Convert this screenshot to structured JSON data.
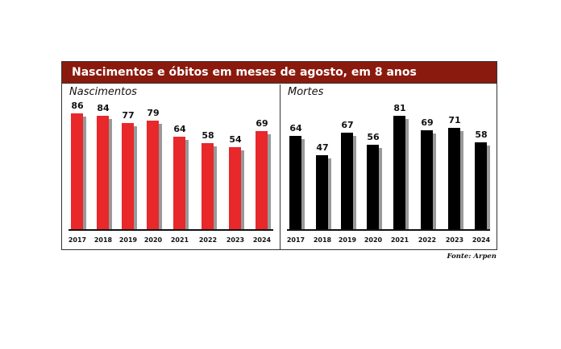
{
  "title": "Nascimentos e óbitos em meses de agosto, em 8 anos",
  "source": "Fonte: Arpen",
  "chart_data": [
    {
      "type": "bar",
      "title": "Nascimentos",
      "categories": [
        "2017",
        "2018",
        "2019",
        "2020",
        "2021",
        "2022",
        "2023",
        "2024"
      ],
      "values": [
        86,
        84,
        77,
        79,
        64,
        58,
        54,
        69
      ],
      "color": "#e8282a",
      "grid": false
    },
    {
      "type": "bar",
      "title": "Mortes",
      "categories": [
        "2017",
        "2018",
        "2019",
        "2020",
        "2021",
        "2022",
        "2023",
        "2024"
      ],
      "values": [
        64,
        47,
        67,
        56,
        81,
        69,
        71,
        58
      ],
      "color": "#000000",
      "grid": false
    }
  ]
}
